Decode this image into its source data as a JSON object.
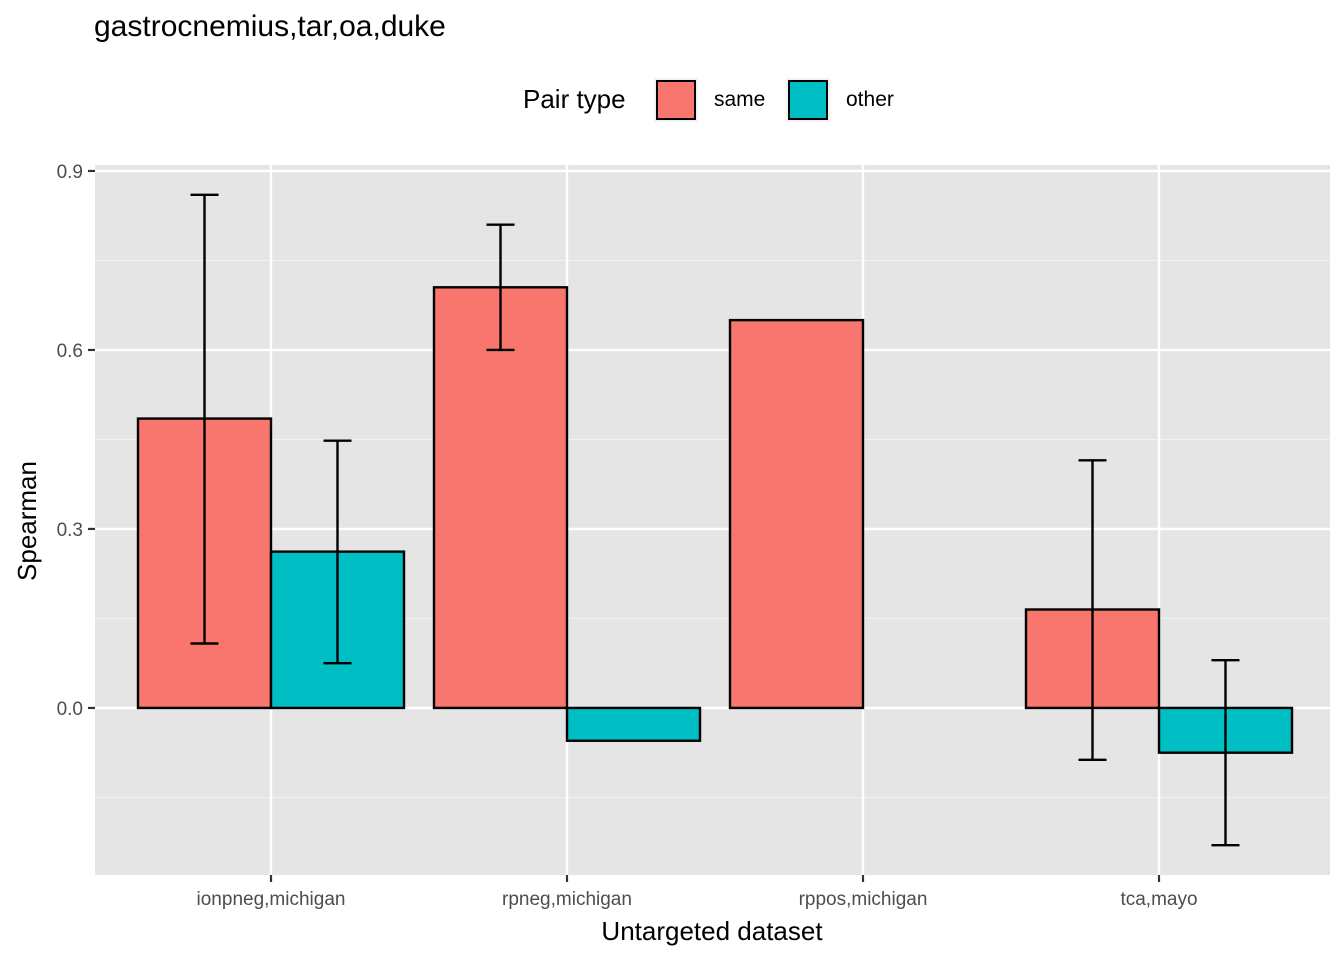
{
  "chart_data": {
    "type": "bar",
    "title": "gastrocnemius,tar,oa,duke",
    "xlabel": "Untargeted dataset",
    "ylabel": "Spearman",
    "categories": [
      "ionpneg,michigan",
      "rpneg,michigan",
      "rppos,michigan",
      "tca,mayo"
    ],
    "yticks": [
      0.0,
      0.3,
      0.6,
      0.9
    ],
    "ytick_labels": [
      "0.0",
      "0.3",
      "0.6",
      "0.9"
    ],
    "ylim": [
      -0.28,
      0.91
    ],
    "legend": {
      "title": "Pair type",
      "position": "top"
    },
    "grid": true,
    "series": [
      {
        "name": "same",
        "color": "#F8766D",
        "values": [
          0.485,
          0.705,
          0.65,
          0.165
        ],
        "error_low": [
          0.108,
          0.6,
          null,
          -0.087
        ],
        "error_high": [
          0.86,
          0.81,
          null,
          0.415
        ]
      },
      {
        "name": "other",
        "color": "#00BFC4",
        "values": [
          0.262,
          -0.055,
          null,
          -0.075
        ],
        "error_low": [
          0.075,
          null,
          null,
          -0.23
        ],
        "error_high": [
          0.448,
          null,
          null,
          0.08
        ]
      }
    ]
  }
}
